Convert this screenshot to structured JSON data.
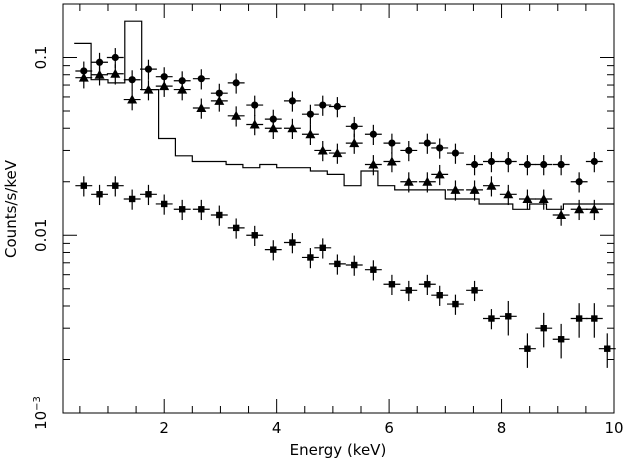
{
  "chart_data": {
    "type": "scatter",
    "title": "",
    "xlabel": "Energy (keV)",
    "ylabel": "Counts/s/keV",
    "xlim": [
      0.2,
      10
    ],
    "ylim": [
      0.001,
      0.2
    ],
    "yscale": "log",
    "grid": false,
    "x_ticks": [
      {
        "value": 2,
        "label": "2"
      },
      {
        "value": 4,
        "label": "4"
      },
      {
        "value": 6,
        "label": "6"
      },
      {
        "value": 8,
        "label": "8"
      },
      {
        "value": 10,
        "label": "10"
      }
    ],
    "y_ticks": [
      {
        "value": 0.1,
        "label": "0.1"
      },
      {
        "value": 0.01,
        "label": "0.01"
      },
      {
        "value": 0.001,
        "label": "10^-3"
      }
    ],
    "series": [
      {
        "marker": "circle",
        "x": [
          0.57,
          0.85,
          1.13,
          1.43,
          1.72,
          2.0,
          2.32,
          2.66,
          2.98,
          3.28,
          3.61,
          3.94,
          4.28,
          4.6,
          4.82,
          5.08,
          5.38,
          5.72,
          6.05,
          6.35,
          6.68,
          6.9,
          7.18,
          7.52,
          7.82,
          8.12,
          8.46,
          8.75,
          9.06,
          9.38,
          9.65
        ],
        "y": [
          0.084,
          0.094,
          0.1,
          0.075,
          0.086,
          0.078,
          0.074,
          0.076,
          0.063,
          0.072,
          0.054,
          0.045,
          0.057,
          0.048,
          0.054,
          0.053,
          0.041,
          0.037,
          0.033,
          0.03,
          0.033,
          0.031,
          0.029,
          0.025,
          0.026,
          0.026,
          0.025,
          0.025,
          0.025,
          0.02,
          0.026
        ]
      },
      {
        "marker": "triangle",
        "x": [
          0.57,
          0.85,
          1.13,
          1.43,
          1.72,
          2.0,
          2.32,
          2.66,
          2.98,
          3.28,
          3.61,
          3.94,
          4.28,
          4.6,
          4.82,
          5.08,
          5.38,
          5.72,
          6.05,
          6.35,
          6.68,
          6.9,
          7.18,
          7.52,
          7.82,
          8.12,
          8.46,
          8.75,
          9.06,
          9.38,
          9.65
        ],
        "y": [
          0.077,
          0.08,
          0.081,
          0.058,
          0.066,
          0.069,
          0.066,
          0.052,
          0.057,
          0.047,
          0.042,
          0.04,
          0.04,
          0.037,
          0.03,
          0.029,
          0.033,
          0.025,
          0.026,
          0.02,
          0.02,
          0.022,
          0.018,
          0.018,
          0.019,
          0.017,
          0.016,
          0.016,
          0.013,
          0.014,
          0.014
        ]
      },
      {
        "marker": "square",
        "x": [
          0.57,
          0.85,
          1.13,
          1.43,
          1.72,
          2.0,
          2.32,
          2.66,
          2.98,
          3.28,
          3.61,
          3.94,
          4.28,
          4.6,
          4.82,
          5.08,
          5.38,
          5.72,
          6.05,
          6.35,
          6.68,
          6.9,
          7.18,
          7.52,
          7.82,
          8.12,
          8.46,
          8.75,
          9.06,
          9.38,
          9.65,
          9.88
        ],
        "y": [
          0.019,
          0.017,
          0.019,
          0.016,
          0.017,
          0.015,
          0.014,
          0.014,
          0.013,
          0.011,
          0.01,
          0.0083,
          0.0091,
          0.0075,
          0.0085,
          0.0069,
          0.0068,
          0.0064,
          0.0053,
          0.0049,
          0.0053,
          0.0046,
          0.0041,
          0.0049,
          0.0034,
          0.0035,
          0.0023,
          0.003,
          0.0026,
          0.0034,
          0.0034,
          0.0023
        ]
      }
    ],
    "step_model": {
      "edges": [
        0.4,
        0.7,
        1.0,
        1.3,
        1.6,
        1.9,
        2.2,
        2.5,
        2.8,
        3.1,
        3.4,
        3.7,
        4.0,
        4.3,
        4.6,
        4.9,
        5.2,
        5.5,
        5.8,
        6.1,
        6.4,
        6.7,
        7.0,
        7.3,
        7.6,
        7.9,
        8.2,
        8.5,
        8.8,
        9.1,
        9.4,
        9.7,
        10.0
      ],
      "values": [
        0.12,
        0.075,
        0.072,
        0.16,
        0.066,
        0.035,
        0.028,
        0.026,
        0.026,
        0.025,
        0.024,
        0.025,
        0.024,
        0.024,
        0.023,
        0.022,
        0.019,
        0.023,
        0.019,
        0.018,
        0.018,
        0.018,
        0.016,
        0.016,
        0.015,
        0.015,
        0.014,
        0.015,
        0.014,
        0.015,
        0.015,
        0.015
      ]
    }
  }
}
